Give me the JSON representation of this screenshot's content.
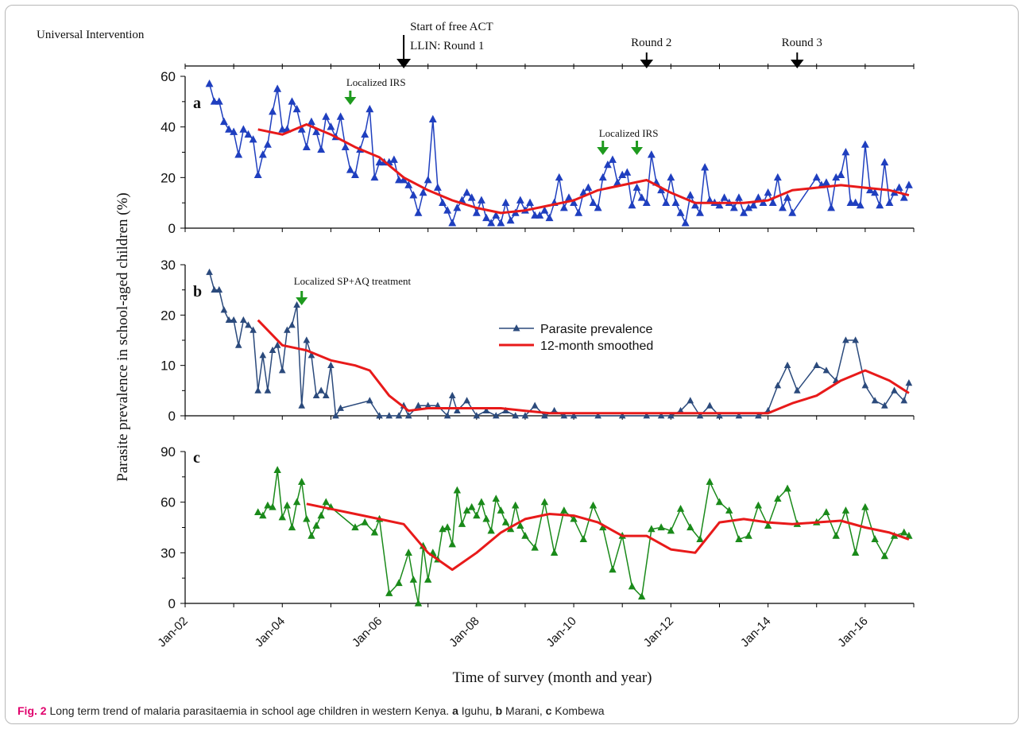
{
  "figure": {
    "top_label": "Universal Intervention",
    "ylabel": "Parasite prevalence in school-aged children (%)",
    "xlabel": "Time of survey (month and year)",
    "x_ticks": [
      "Jan-02",
      "Jan-04",
      "Jan-06",
      "Jan-08",
      "Jan-10",
      "Jan-12",
      "Jan-14",
      "Jan-16"
    ],
    "legend": {
      "series1": "Parasite prevalence",
      "series2": "12-month smoothed"
    },
    "colors": {
      "blue": "#1f3fbf",
      "navy": "#2b4a7c",
      "green": "#1a8a1a",
      "red": "#e81a1a",
      "arrow_green": "#1e9a1e",
      "arrow_black": "#000000"
    },
    "top_annotations": [
      {
        "x": 2006.5,
        "text1": "Start of free ACT",
        "text2": "LLIN: Round 1"
      },
      {
        "x": 2011.5,
        "text1": "Round 2"
      },
      {
        "x": 2014.6,
        "text1": "Round 3"
      }
    ]
  },
  "caption": {
    "fig": "Fig. 2",
    "text": "Long term trend of malaria parasitaemia in school age children in western Kenya.",
    "a": "a",
    "a_site": "Iguhu,",
    "b": "b",
    "b_site": "Marani,",
    "c": "c",
    "c_site": "Kombewa"
  },
  "chart_data": [
    {
      "panel": "a",
      "type": "line",
      "ylim": [
        0,
        60
      ],
      "yticks": [
        0,
        20,
        40,
        60
      ],
      "xlim": [
        2002,
        2017
      ],
      "annotations": [
        {
          "x": 2005.4,
          "text": "Localized IRS"
        },
        {
          "x": 2010.6,
          "text": "Localized IRS"
        },
        {
          "x": 2011.3,
          "text": ""
        }
      ],
      "series": [
        {
          "name": "Parasite prevalence",
          "x": [
            2002.5,
            2002.6,
            2002.7,
            2002.8,
            2002.9,
            2003.0,
            2003.1,
            2003.2,
            2003.3,
            2003.4,
            2003.5,
            2003.6,
            2003.7,
            2003.8,
            2003.9,
            2004.0,
            2004.1,
            2004.2,
            2004.3,
            2004.4,
            2004.5,
            2004.6,
            2004.7,
            2004.8,
            2004.9,
            2005.0,
            2005.1,
            2005.2,
            2005.3,
            2005.4,
            2005.5,
            2005.6,
            2005.7,
            2005.8,
            2005.9,
            2006.0,
            2006.1,
            2006.2,
            2006.3,
            2006.4,
            2006.5,
            2006.6,
            2006.7,
            2006.8,
            2006.9,
            2007.0,
            2007.1,
            2007.2,
            2007.3,
            2007.4,
            2007.5,
            2007.6,
            2007.7,
            2007.8,
            2007.9,
            2008.0,
            2008.1,
            2008.2,
            2008.3,
            2008.4,
            2008.5,
            2008.6,
            2008.7,
            2008.8,
            2008.9,
            2009.0,
            2009.1,
            2009.2,
            2009.3,
            2009.4,
            2009.5,
            2009.6,
            2009.7,
            2009.8,
            2009.9,
            2010.0,
            2010.1,
            2010.2,
            2010.3,
            2010.4,
            2010.5,
            2010.6,
            2010.7,
            2010.8,
            2010.9,
            2011.0,
            2011.1,
            2011.2,
            2011.3,
            2011.4,
            2011.5,
            2011.6,
            2011.7,
            2011.8,
            2011.9,
            2012.0,
            2012.1,
            2012.2,
            2012.3,
            2012.4,
            2012.5,
            2012.6,
            2012.7,
            2012.8,
            2012.9,
            2013.0,
            2013.1,
            2013.2,
            2013.3,
            2013.4,
            2013.5,
            2013.6,
            2013.7,
            2013.8,
            2013.9,
            2014.0,
            2014.1,
            2014.2,
            2014.3,
            2014.4,
            2014.5,
            2015.0,
            2015.1,
            2015.2,
            2015.3,
            2015.4,
            2015.5,
            2015.6,
            2015.7,
            2015.8,
            2015.9,
            2016.0,
            2016.1,
            2016.2,
            2016.3,
            2016.4,
            2016.5,
            2016.6,
            2016.7,
            2016.8,
            2016.9
          ],
          "values": [
            57,
            50,
            50,
            42,
            39,
            38,
            29,
            39,
            37,
            35,
            21,
            29,
            33,
            46,
            55,
            39,
            39,
            50,
            47,
            39,
            32,
            42,
            38,
            31,
            44,
            40,
            36,
            44,
            32,
            23,
            21,
            31,
            37,
            47,
            20,
            26,
            26,
            26,
            27,
            19,
            19,
            17,
            13,
            6,
            14,
            19,
            43,
            16,
            10,
            7,
            2,
            8,
            11,
            14,
            12,
            6,
            11,
            4,
            2,
            5,
            2,
            10,
            3,
            6,
            11,
            7,
            10,
            5,
            5,
            7,
            4,
            10,
            20,
            8,
            12,
            10,
            6,
            14,
            16,
            10,
            8,
            20,
            25,
            27,
            18,
            21,
            22,
            9,
            16,
            12,
            10,
            29,
            18,
            15,
            10,
            20,
            10,
            6,
            2,
            13,
            9,
            6,
            24,
            11,
            10,
            9,
            12,
            10,
            8,
            12,
            6,
            8,
            9,
            12,
            10,
            14,
            10,
            20,
            8,
            12,
            6,
            20,
            17,
            18,
            8,
            20,
            21,
            30,
            10,
            10,
            9,
            33,
            15,
            14,
            9,
            26,
            10,
            14,
            16,
            12,
            17
          ]
        },
        {
          "name": "12-month smoothed",
          "x": [
            2003.5,
            2004.0,
            2004.5,
            2005.0,
            2005.5,
            2006.0,
            2006.5,
            2007.0,
            2007.5,
            2008.0,
            2008.5,
            2009.0,
            2009.5,
            2010.0,
            2010.5,
            2011.0,
            2011.5,
            2012.0,
            2012.5,
            2013.0,
            2013.5,
            2014.0,
            2014.5,
            2015.0,
            2015.5,
            2016.0,
            2016.5,
            2016.9
          ],
          "values": [
            39,
            37,
            41,
            37,
            32,
            28,
            20,
            15,
            11,
            8,
            6,
            7,
            9,
            11,
            15,
            17,
            19,
            14,
            10,
            10,
            10,
            11,
            15,
            16,
            17,
            16,
            15,
            13
          ]
        }
      ]
    },
    {
      "panel": "b",
      "type": "line",
      "ylim": [
        0,
        30
      ],
      "yticks": [
        0,
        10,
        20,
        30
      ],
      "xlim": [
        2002,
        2017
      ],
      "annotations": [
        {
          "x": 2004.4,
          "text": "Localized SP+AQ treatment"
        }
      ],
      "series": [
        {
          "name": "Parasite prevalence",
          "x": [
            2002.5,
            2002.6,
            2002.7,
            2002.8,
            2002.9,
            2003.0,
            2003.1,
            2003.2,
            2003.3,
            2003.4,
            2003.5,
            2003.6,
            2003.7,
            2003.8,
            2003.9,
            2004.0,
            2004.1,
            2004.2,
            2004.3,
            2004.4,
            2004.5,
            2004.6,
            2004.7,
            2004.8,
            2004.9,
            2005.0,
            2005.1,
            2005.2,
            2005.8,
            2006.0,
            2006.2,
            2006.4,
            2006.5,
            2006.6,
            2006.8,
            2007.0,
            2007.2,
            2007.4,
            2007.5,
            2007.6,
            2007.8,
            2008.0,
            2008.2,
            2008.4,
            2008.6,
            2008.8,
            2009.0,
            2009.2,
            2009.4,
            2009.6,
            2009.8,
            2010.0,
            2010.5,
            2011.0,
            2011.5,
            2011.8,
            2012.0,
            2012.2,
            2012.4,
            2012.6,
            2012.8,
            2013.0,
            2013.4,
            2013.8,
            2014.0,
            2014.2,
            2014.4,
            2014.6,
            2015.0,
            2015.2,
            2015.4,
            2015.6,
            2015.8,
            2016.0,
            2016.2,
            2016.4,
            2016.6,
            2016.8,
            2016.9
          ],
          "values": [
            28.5,
            25,
            25,
            21,
            19,
            19,
            14,
            19,
            18,
            17,
            5,
            12,
            5,
            13,
            14,
            9,
            17,
            18,
            22,
            2,
            15,
            12,
            4,
            5,
            4,
            10,
            0,
            1.5,
            3,
            0,
            0,
            0,
            2,
            0,
            2,
            2,
            2,
            0,
            4,
            1,
            3,
            0,
            1,
            0,
            1,
            0,
            0,
            2,
            0,
            1,
            0,
            0,
            0,
            0,
            0,
            0,
            0,
            1,
            3,
            0,
            2,
            0,
            0,
            0,
            1,
            6,
            10,
            5,
            10,
            9,
            7,
            15,
            15,
            6,
            3,
            2,
            5,
            3,
            6.5
          ]
        },
        {
          "name": "12-month smoothed",
          "x": [
            2003.5,
            2004.0,
            2004.5,
            2005.0,
            2005.5,
            2005.8,
            2006.2,
            2006.6,
            2007.0,
            2007.5,
            2008.0,
            2008.5,
            2009.0,
            2009.5,
            2010.0,
            2010.5,
            2011.0,
            2011.5,
            2012.0,
            2012.5,
            2013.0,
            2013.5,
            2014.0,
            2014.5,
            2015.0,
            2015.5,
            2016.0,
            2016.5,
            2016.9
          ],
          "values": [
            19,
            14,
            13,
            11,
            10,
            9,
            4,
            1,
            1.5,
            1.5,
            1.5,
            1.5,
            1,
            0.5,
            0.5,
            0.5,
            0.5,
            0.5,
            0.5,
            0.5,
            0.5,
            0.5,
            0.5,
            2.5,
            4,
            7,
            9,
            7,
            4.5
          ]
        }
      ]
    },
    {
      "panel": "c",
      "type": "line",
      "ylim": [
        0,
        90
      ],
      "yticks": [
        0,
        30,
        60,
        90
      ],
      "xlim": [
        2002,
        2017
      ],
      "series": [
        {
          "name": "Parasite prevalence",
          "x": [
            2003.5,
            2003.6,
            2003.7,
            2003.8,
            2003.9,
            2004.0,
            2004.1,
            2004.2,
            2004.3,
            2004.4,
            2004.5,
            2004.6,
            2004.7,
            2004.8,
            2004.9,
            2005.0,
            2005.5,
            2005.7,
            2005.9,
            2006.0,
            2006.2,
            2006.4,
            2006.6,
            2006.7,
            2006.8,
            2006.9,
            2007.0,
            2007.1,
            2007.2,
            2007.3,
            2007.4,
            2007.5,
            2007.6,
            2007.7,
            2007.8,
            2007.9,
            2008.0,
            2008.1,
            2008.2,
            2008.3,
            2008.4,
            2008.5,
            2008.6,
            2008.7,
            2008.8,
            2008.9,
            2009.0,
            2009.2,
            2009.4,
            2009.6,
            2009.8,
            2010.0,
            2010.2,
            2010.4,
            2010.6,
            2010.8,
            2011.0,
            2011.2,
            2011.4,
            2011.6,
            2011.8,
            2012.0,
            2012.2,
            2012.4,
            2012.6,
            2012.8,
            2013.0,
            2013.2,
            2013.4,
            2013.6,
            2013.8,
            2014.0,
            2014.2,
            2014.4,
            2014.6,
            2015.0,
            2015.2,
            2015.4,
            2015.6,
            2015.8,
            2016.0,
            2016.2,
            2016.4,
            2016.6,
            2016.8,
            2016.9
          ],
          "values": [
            54,
            52,
            58,
            57,
            79,
            51,
            58,
            45,
            60,
            72,
            50,
            40,
            46,
            52,
            60,
            57,
            45,
            48,
            42,
            50,
            6,
            12,
            30,
            14,
            0,
            34,
            14,
            30,
            26,
            44,
            45,
            35,
            67,
            47,
            55,
            57,
            52,
            60,
            50,
            43,
            62,
            55,
            48,
            44,
            58,
            46,
            40,
            33,
            60,
            30,
            55,
            50,
            38,
            58,
            45,
            20,
            40,
            10,
            4,
            44,
            45,
            43,
            56,
            45,
            38,
            72,
            60,
            55,
            38,
            40,
            58,
            46,
            62,
            68,
            47,
            48,
            54,
            40,
            55,
            30,
            57,
            38,
            28,
            40,
            42,
            40
          ]
        },
        {
          "name": "12-month smoothed",
          "x": [
            2004.5,
            2005.0,
            2005.5,
            2006.0,
            2006.5,
            2007.0,
            2007.5,
            2008.0,
            2008.5,
            2009.0,
            2009.5,
            2010.0,
            2010.5,
            2011.0,
            2011.5,
            2012.0,
            2012.5,
            2013.0,
            2013.5,
            2014.0,
            2014.5,
            2015.0,
            2015.5,
            2016.0,
            2016.5,
            2016.9
          ],
          "values": [
            59,
            56,
            53,
            50,
            47,
            30,
            20,
            30,
            42,
            50,
            53,
            52,
            48,
            40,
            40,
            32,
            30,
            48,
            50,
            48,
            47,
            48,
            49,
            45,
            42,
            38
          ]
        }
      ]
    }
  ]
}
